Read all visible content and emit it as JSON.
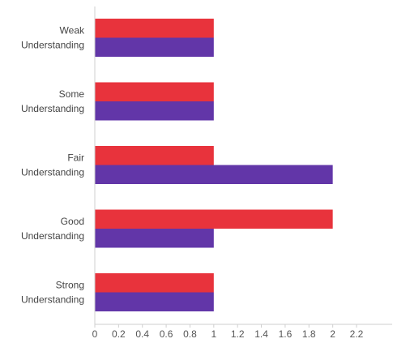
{
  "chart_data": {
    "type": "bar",
    "orientation": "horizontal",
    "categories": [
      [
        "Weak",
        "Understanding"
      ],
      [
        "Some",
        "Understanding"
      ],
      [
        "Fair",
        "Understanding"
      ],
      [
        "Good",
        "Understanding"
      ],
      [
        "Strong",
        "Understanding"
      ]
    ],
    "series": [
      {
        "color": "#e8333c",
        "values": [
          1,
          1,
          1,
          2,
          1
        ]
      },
      {
        "color": "#6236a8",
        "values": [
          1,
          1,
          2,
          1,
          1
        ]
      }
    ],
    "xlim": [
      0,
      2.2
    ],
    "xticks": [
      "0",
      "0.2",
      "0.4",
      "0.6",
      "0.8",
      "1",
      "1.2",
      "1.4",
      "1.6",
      "1.8",
      "2",
      "2.2"
    ],
    "title": "",
    "xlabel": "",
    "ylabel": "",
    "grid": false,
    "legend": "none"
  }
}
